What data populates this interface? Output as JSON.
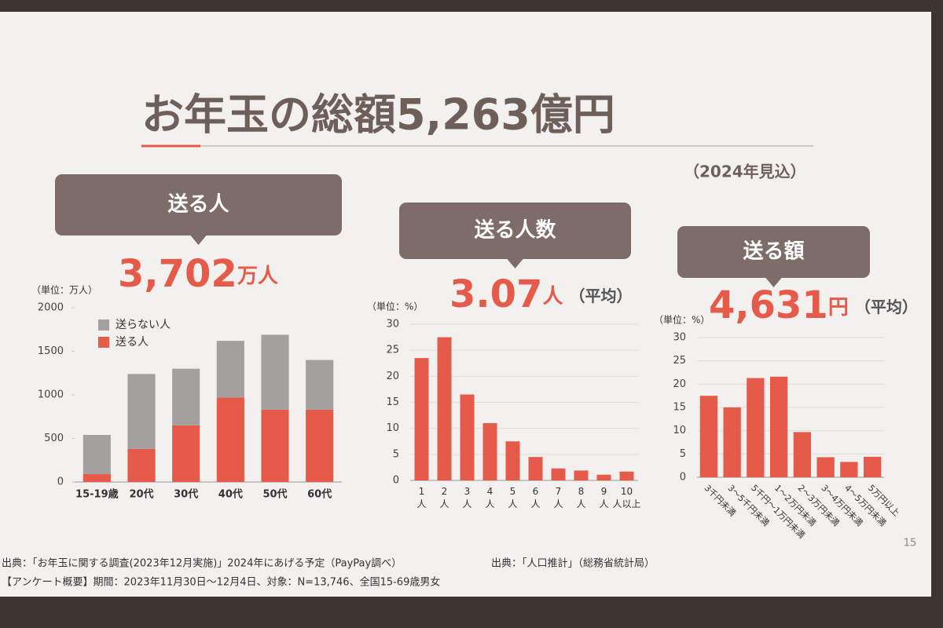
{
  "slide": {
    "title": "お年玉の総額5,263億円",
    "subtitle": "（2024年見込）",
    "page": "15",
    "footnotes": [
      "出典：「お年玉に関する調査(2023年12月実施)」2024年にあげる予定（PayPay調べ）",
      "【アンケート概要】期間：2023年11月30日～12月4日、対象：N=13,746、全国15-69歳男女",
      "出典：「人口推計」（総務省統計局）"
    ]
  },
  "panels": [
    {
      "header": "送る人",
      "figure": "3,702",
      "unit": "万人"
    },
    {
      "header": "送る人数",
      "figure": "3.07",
      "unit": "人",
      "note": "（平均）"
    },
    {
      "header": "送る額",
      "figure": "4,631",
      "unit": "円",
      "note": "（平均）"
    }
  ],
  "chart_data": [
    {
      "type": "bar",
      "stacked": true,
      "y_unit_label": "（単位：万人）",
      "categories": [
        "15-19歳",
        "20代",
        "30代",
        "40代",
        "50代",
        "60代"
      ],
      "series": [
        {
          "name": "送らない人",
          "color": "#a3a09f",
          "values": [
            450,
            860,
            650,
            650,
            860,
            570
          ]
        },
        {
          "name": "送る人",
          "color": "#e55a48",
          "values": [
            90,
            380,
            650,
            970,
            830,
            830
          ]
        }
      ],
      "ylim": [
        0,
        2000
      ],
      "yticks": [
        0,
        500,
        1000,
        1500,
        2000
      ],
      "grid": false,
      "legend": "top-left"
    },
    {
      "type": "bar",
      "y_unit_label": "（単位：%）",
      "categories": [
        "1人",
        "2人",
        "3人",
        "4人",
        "5人",
        "6人",
        "7人",
        "8人",
        "9人",
        "10人以上"
      ],
      "values": [
        23.5,
        27.5,
        16.5,
        11,
        7.5,
        4.5,
        2.3,
        1.9,
        1.1,
        1.7
      ],
      "color": "#e55a48",
      "ylim": [
        0,
        30
      ],
      "yticks": [
        0,
        5,
        10,
        15,
        20,
        25,
        30
      ],
      "grid": true
    },
    {
      "type": "bar",
      "y_unit_label": "（単位：%）",
      "categories": [
        "3千円未満",
        "3～5千円未満",
        "5千円～1万円未満",
        "1～2万円未満",
        "2～3万円未満",
        "3～4万円未満",
        "4～5万円未満",
        "5万円以上"
      ],
      "values": [
        17.5,
        15,
        21.3,
        21.6,
        9.7,
        4.3,
        3.3,
        4.4
      ],
      "color": "#e55a48",
      "ylim": [
        0,
        30
      ],
      "yticks": [
        0,
        5,
        10,
        15,
        20,
        25,
        30
      ],
      "grid": true
    }
  ]
}
